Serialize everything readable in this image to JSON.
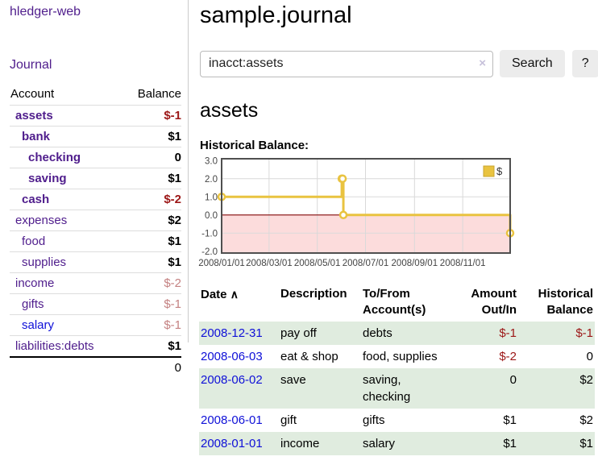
{
  "app": {
    "brand": "hledger-web",
    "nav_journal": "Journal"
  },
  "sidebar": {
    "header": {
      "account": "Account",
      "balance": "Balance"
    },
    "accounts": [
      {
        "name": "assets",
        "balance": "$-1",
        "depth": 1,
        "bold": true,
        "name_color": "purple",
        "tone": "neg"
      },
      {
        "name": "bank",
        "balance": "$1",
        "depth": 2,
        "bold": true,
        "name_color": "purple",
        "tone": "pos"
      },
      {
        "name": "checking",
        "balance": "0",
        "depth": 3,
        "bold": true,
        "name_color": "purple",
        "tone": "pos"
      },
      {
        "name": "saving",
        "balance": "$1",
        "depth": 3,
        "bold": true,
        "name_color": "purple",
        "tone": "pos"
      },
      {
        "name": "cash",
        "balance": "$-2",
        "depth": 2,
        "bold": true,
        "name_color": "purple",
        "tone": "neg"
      },
      {
        "name": "expenses",
        "balance": "$2",
        "depth": 1,
        "bold": false,
        "name_color": "purple",
        "tone": "pos"
      },
      {
        "name": "food",
        "balance": "$1",
        "depth": 2,
        "bold": false,
        "name_color": "purple",
        "tone": "pos"
      },
      {
        "name": "supplies",
        "balance": "$1",
        "depth": 2,
        "bold": false,
        "name_color": "purple",
        "tone": "pos"
      },
      {
        "name": "income",
        "balance": "$-2",
        "depth": 1,
        "bold": false,
        "name_color": "purple",
        "tone": "negdim"
      },
      {
        "name": "gifts",
        "balance": "$-1",
        "depth": 2,
        "bold": false,
        "name_color": "purple",
        "tone": "negdim"
      },
      {
        "name": "salary",
        "balance": "$-1",
        "depth": 2,
        "bold": false,
        "name_color": "blue",
        "tone": "negdim"
      },
      {
        "name": "liabilities:debts",
        "balance": "$1",
        "depth": 1,
        "bold": false,
        "name_color": "purple",
        "tone": "pos"
      }
    ],
    "total": "0"
  },
  "main": {
    "title": "sample.journal",
    "search": {
      "value": "inacct:assets",
      "clear_label": "×",
      "button": "Search",
      "help": "?"
    },
    "section_title": "assets",
    "chart_caption": "Historical Balance:"
  },
  "chart_data": {
    "type": "line",
    "subtype": "step",
    "title": "Historical Balance",
    "legend": [
      {
        "label": "$",
        "color": "#e9c340"
      }
    ],
    "ylim": [
      -2.1,
      3.1
    ],
    "xlim_days": [
      0,
      365
    ],
    "y_ticks": [
      "3.0",
      "2.0",
      "1.0",
      "0.0",
      "-1.0",
      "-2.0"
    ],
    "y_tick_values": [
      3,
      2,
      1,
      0,
      -1,
      -2
    ],
    "x_ticks": [
      {
        "day": 0,
        "label": "2008/01/01"
      },
      {
        "day": 60,
        "label": "2008/03/01"
      },
      {
        "day": 121,
        "label": "2008/05/01"
      },
      {
        "day": 182,
        "label": "2008/07/01"
      },
      {
        "day": 244,
        "label": "2008/09/01"
      },
      {
        "day": 305,
        "label": "2008/11/01"
      }
    ],
    "series": [
      {
        "name": "$",
        "points": [
          {
            "date": "2008-01-01",
            "day": 0,
            "value": 1
          },
          {
            "date": "2008-06-01",
            "day": 152,
            "value": 2
          },
          {
            "date": "2008-06-02",
            "day": 153,
            "value": 2
          },
          {
            "date": "2008-06-03",
            "day": 154,
            "value": 0
          },
          {
            "date": "2008-12-31",
            "day": 365,
            "value": -1
          }
        ]
      }
    ],
    "colors": {
      "line": "#e9c340",
      "marker_fill": "#ffffff",
      "negative_region": "#fcdcdc",
      "zero_line": "#8f1f1f",
      "grid": "#d9d9d9",
      "border": "#4f4f4f"
    }
  },
  "table": {
    "headers": {
      "date": "Date",
      "sort_indicator": "∧",
      "description": "Description",
      "accounts": "To/From\nAccount(s)",
      "amount": "Amount\nOut/In",
      "balance": "Historical\nBalance"
    },
    "rows": [
      {
        "date": "2008-12-31",
        "description": "pay off",
        "accounts": "debts",
        "amount": "$-1",
        "amount_tone": "neg",
        "balance": "$-1",
        "balance_tone": "neg",
        "shaded": true
      },
      {
        "date": "2008-06-03",
        "description": "eat & shop",
        "accounts": "food, supplies",
        "amount": "$-2",
        "amount_tone": "neg",
        "balance": "0",
        "balance_tone": "pos",
        "shaded": false
      },
      {
        "date": "2008-06-02",
        "description": "save",
        "accounts": "saving, checking",
        "amount": "0",
        "amount_tone": "pos",
        "balance": "$2",
        "balance_tone": "pos",
        "shaded": true
      },
      {
        "date": "2008-06-01",
        "description": "gift",
        "accounts": "gifts",
        "amount": "$1",
        "amount_tone": "pos",
        "balance": "$2",
        "balance_tone": "pos",
        "shaded": false
      },
      {
        "date": "2008-01-01",
        "description": "income",
        "accounts": "salary",
        "amount": "$1",
        "amount_tone": "pos",
        "balance": "$1",
        "balance_tone": "pos",
        "shaded": true
      }
    ]
  }
}
